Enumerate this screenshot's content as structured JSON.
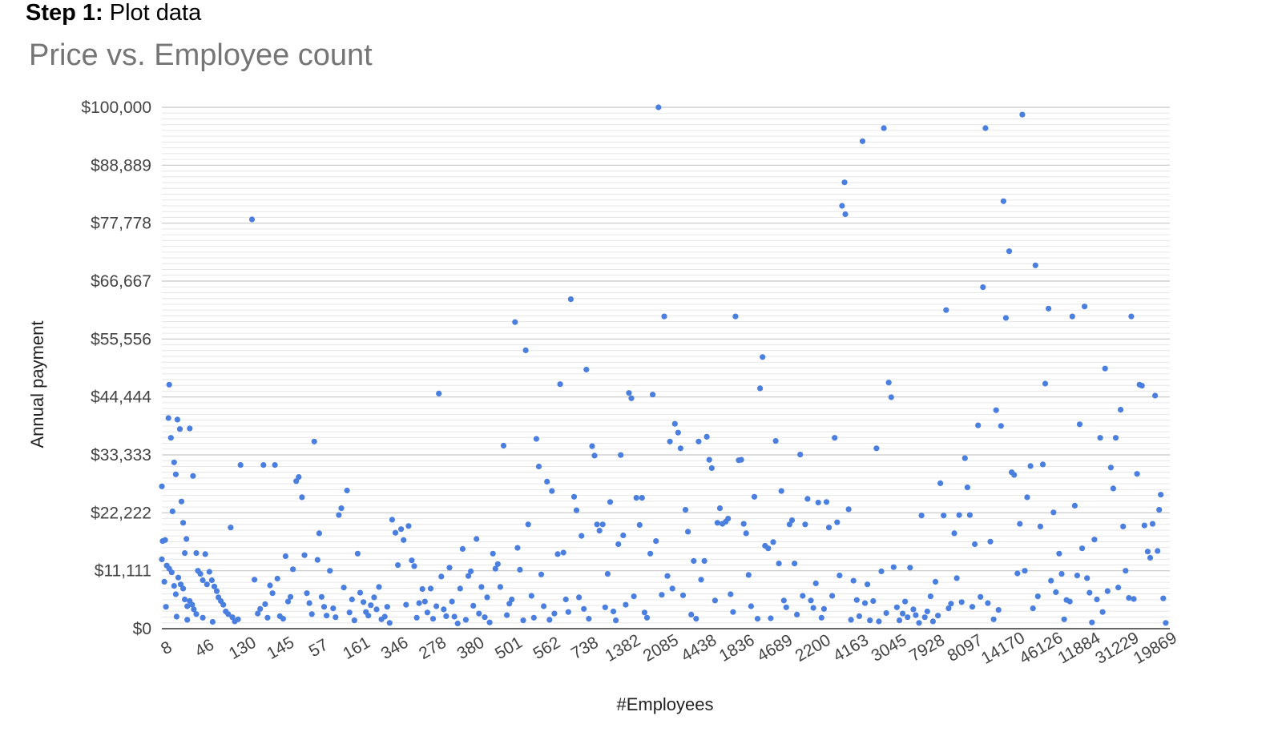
{
  "heading": {
    "step_label": "Step 1:",
    "step_text": "Plot data"
  },
  "chart_data": {
    "type": "scatter",
    "title": "Price vs. Employee count",
    "xlabel": "#Employees",
    "ylabel": "Annual payment",
    "ylim": [
      0,
      100000
    ],
    "y_ticks": [
      "$0",
      "$11,111",
      "$22,222",
      "$33,333",
      "$44,444",
      "$55,556",
      "$66,667",
      "$77,778",
      "$88,889",
      "$100,000"
    ],
    "x_tick_labels": [
      "8",
      "46",
      "130",
      "145",
      "57",
      "161",
      "346",
      "278",
      "380",
      "501",
      "562",
      "738",
      "1382",
      "2085",
      "4438",
      "1836",
      "4689",
      "2200",
      "4163",
      "3045",
      "7928",
      "8097",
      "14170",
      "46126",
      "11884",
      "31229",
      "19869"
    ],
    "grid": true,
    "legend": "none",
    "point_color": "#4a7fe0",
    "x_note": "categorical axis: x is the ordinal position of each company in the plotted sequence (about 0-1260)",
    "points": [
      [
        0,
        27300
      ],
      [
        1,
        16800
      ],
      [
        4,
        17000
      ],
      [
        8,
        40400
      ],
      [
        9,
        46800
      ],
      [
        11,
        36600
      ],
      [
        13,
        22500
      ],
      [
        15,
        31900
      ],
      [
        17,
        29600
      ],
      [
        19,
        40100
      ],
      [
        22,
        38300
      ],
      [
        24,
        24400
      ],
      [
        26,
        20300
      ],
      [
        28,
        14500
      ],
      [
        30,
        17200
      ],
      [
        34,
        38400
      ],
      [
        38,
        29300
      ],
      [
        42,
        14500
      ],
      [
        0,
        13300
      ],
      [
        3,
        9000
      ],
      [
        6,
        12100
      ],
      [
        9,
        11500
      ],
      [
        12,
        10800
      ],
      [
        15,
        8200
      ],
      [
        17,
        6600
      ],
      [
        20,
        9800
      ],
      [
        23,
        8500
      ],
      [
        26,
        7700
      ],
      [
        28,
        5600
      ],
      [
        31,
        4300
      ],
      [
        34,
        5300
      ],
      [
        37,
        4600
      ],
      [
        39,
        3700
      ],
      [
        42,
        2800
      ],
      [
        5,
        4200
      ],
      [
        18,
        2300
      ],
      [
        31,
        1700
      ],
      [
        44,
        11100
      ],
      [
        47,
        10500
      ],
      [
        50,
        9300
      ],
      [
        53,
        14300
      ],
      [
        55,
        8500
      ],
      [
        58,
        10900
      ],
      [
        61,
        9300
      ],
      [
        64,
        8100
      ],
      [
        67,
        7200
      ],
      [
        69,
        6000
      ],
      [
        72,
        5300
      ],
      [
        75,
        4600
      ],
      [
        78,
        3300
      ],
      [
        81,
        2800
      ],
      [
        50,
        2100
      ],
      [
        62,
        1300
      ],
      [
        86,
        2200
      ],
      [
        89,
        1400
      ],
      [
        93,
        1800
      ],
      [
        84,
        19400
      ],
      [
        96,
        31400
      ],
      [
        110,
        78500
      ],
      [
        113,
        9400
      ],
      [
        117,
        2900
      ],
      [
        120,
        3800
      ],
      [
        124,
        31400
      ],
      [
        126,
        4700
      ],
      [
        129,
        2100
      ],
      [
        132,
        8300
      ],
      [
        135,
        6800
      ],
      [
        138,
        31400
      ],
      [
        141,
        9600
      ],
      [
        144,
        2400
      ],
      [
        148,
        1900
      ],
      [
        151,
        13900
      ],
      [
        154,
        5200
      ],
      [
        157,
        6100
      ],
      [
        160,
        11400
      ],
      [
        164,
        28300
      ],
      [
        167,
        29100
      ],
      [
        171,
        25200
      ],
      [
        174,
        14100
      ],
      [
        177,
        6800
      ],
      [
        180,
        4900
      ],
      [
        183,
        2800
      ],
      [
        186,
        35900
      ],
      [
        190,
        13200
      ],
      [
        192,
        18300
      ],
      [
        195,
        6100
      ],
      [
        198,
        4200
      ],
      [
        201,
        2500
      ],
      [
        205,
        11100
      ],
      [
        209,
        3900
      ],
      [
        212,
        2200
      ],
      [
        216,
        21800
      ],
      [
        219,
        23100
      ],
      [
        222,
        7900
      ],
      [
        226,
        26500
      ],
      [
        229,
        3100
      ],
      [
        232,
        5600
      ],
      [
        235,
        1600
      ],
      [
        239,
        14400
      ],
      [
        242,
        6900
      ],
      [
        246,
        5100
      ],
      [
        249,
        3200
      ],
      [
        252,
        2500
      ],
      [
        255,
        4500
      ],
      [
        259,
        6000
      ],
      [
        262,
        3700
      ],
      [
        265,
        8000
      ],
      [
        268,
        1800
      ],
      [
        272,
        2300
      ],
      [
        275,
        4200
      ],
      [
        278,
        1100
      ],
      [
        281,
        20900
      ],
      [
        285,
        18400
      ],
      [
        288,
        12200
      ],
      [
        292,
        19100
      ],
      [
        295,
        17000
      ],
      [
        298,
        4600
      ],
      [
        301,
        19700
      ],
      [
        305,
        13100
      ],
      [
        308,
        12000
      ],
      [
        311,
        2100
      ],
      [
        314,
        4900
      ],
      [
        318,
        7600
      ],
      [
        321,
        5200
      ],
      [
        324,
        3100
      ],
      [
        328,
        7700
      ],
      [
        331,
        1900
      ],
      [
        335,
        4300
      ],
      [
        338,
        45100
      ],
      [
        341,
        10000
      ],
      [
        344,
        3700
      ],
      [
        347,
        2400
      ],
      [
        351,
        11700
      ],
      [
        354,
        5200
      ],
      [
        357,
        2300
      ],
      [
        361,
        1000
      ],
      [
        364,
        7700
      ],
      [
        367,
        15300
      ],
      [
        371,
        1700
      ],
      [
        374,
        10100
      ],
      [
        377,
        11000
      ],
      [
        380,
        4400
      ],
      [
        384,
        17200
      ],
      [
        387,
        2900
      ],
      [
        390,
        8000
      ],
      [
        394,
        2200
      ],
      [
        397,
        6000
      ],
      [
        400,
        1200
      ],
      [
        404,
        14400
      ],
      [
        407,
        11500
      ],
      [
        410,
        12400
      ],
      [
        413,
        8000
      ],
      [
        417,
        35100
      ],
      [
        421,
        2600
      ],
      [
        424,
        4800
      ],
      [
        427,
        5600
      ],
      [
        431,
        58800
      ],
      [
        434,
        15500
      ],
      [
        437,
        11300
      ],
      [
        441,
        1600
      ],
      [
        444,
        53400
      ],
      [
        447,
        20000
      ],
      [
        451,
        6300
      ],
      [
        454,
        2100
      ],
      [
        457,
        36400
      ],
      [
        460,
        31100
      ],
      [
        463,
        10400
      ],
      [
        466,
        4300
      ],
      [
        470,
        28200
      ],
      [
        473,
        1700
      ],
      [
        476,
        26400
      ],
      [
        479,
        2900
      ],
      [
        483,
        14300
      ],
      [
        486,
        46900
      ],
      [
        490,
        14600
      ],
      [
        493,
        5600
      ],
      [
        496,
        3200
      ],
      [
        499,
        63200
      ],
      [
        503,
        25300
      ],
      [
        506,
        22700
      ],
      [
        509,
        6000
      ],
      [
        512,
        17800
      ],
      [
        515,
        3800
      ],
      [
        518,
        49700
      ],
      [
        521,
        1900
      ],
      [
        525,
        35000
      ],
      [
        528,
        33200
      ],
      [
        531,
        20000
      ],
      [
        534,
        18800
      ],
      [
        538,
        20000
      ],
      [
        541,
        4100
      ],
      [
        544,
        10500
      ],
      [
        547,
        24300
      ],
      [
        551,
        3300
      ],
      [
        554,
        1600
      ],
      [
        557,
        16200
      ],
      [
        560,
        33300
      ],
      [
        563,
        17900
      ],
      [
        566,
        4600
      ],
      [
        570,
        45200
      ],
      [
        573,
        44200
      ],
      [
        576,
        6200
      ],
      [
        579,
        25100
      ],
      [
        583,
        19900
      ],
      [
        586,
        25100
      ],
      [
        589,
        3100
      ],
      [
        592,
        2100
      ],
      [
        596,
        14400
      ],
      [
        599,
        44900
      ],
      [
        603,
        16800
      ],
      [
        606,
        100000
      ],
      [
        610,
        6500
      ],
      [
        613,
        59900
      ],
      [
        617,
        10100
      ],
      [
        620,
        35900
      ],
      [
        623,
        7700
      ],
      [
        626,
        39300
      ],
      [
        630,
        37600
      ],
      [
        633,
        34600
      ],
      [
        636,
        6400
      ],
      [
        639,
        22800
      ],
      [
        642,
        18600
      ],
      [
        646,
        2700
      ],
      [
        649,
        13000
      ],
      [
        652,
        1900
      ],
      [
        655,
        35900
      ],
      [
        658,
        9400
      ],
      [
        662,
        13000
      ],
      [
        665,
        36800
      ],
      [
        668,
        32400
      ],
      [
        671,
        30800
      ],
      [
        675,
        5400
      ],
      [
        678,
        20300
      ],
      [
        681,
        23100
      ],
      [
        684,
        20100
      ],
      [
        688,
        20500
      ],
      [
        691,
        21100
      ],
      [
        694,
        6600
      ],
      [
        697,
        3200
      ],
      [
        700,
        59900
      ],
      [
        704,
        32300
      ],
      [
        707,
        32400
      ],
      [
        710,
        20100
      ],
      [
        713,
        18300
      ],
      [
        716,
        10300
      ],
      [
        719,
        4300
      ],
      [
        723,
        25300
      ],
      [
        727,
        1900
      ],
      [
        730,
        46100
      ],
      [
        733,
        52100
      ],
      [
        736,
        15900
      ],
      [
        740,
        15400
      ],
      [
        743,
        2000
      ],
      [
        746,
        16600
      ],
      [
        749,
        36000
      ],
      [
        753,
        12500
      ],
      [
        756,
        26400
      ],
      [
        759,
        5400
      ],
      [
        762,
        4100
      ],
      [
        766,
        20000
      ],
      [
        769,
        20800
      ],
      [
        772,
        12500
      ],
      [
        775,
        2700
      ],
      [
        779,
        33400
      ],
      [
        782,
        6300
      ],
      [
        785,
        20000
      ],
      [
        788,
        24900
      ],
      [
        792,
        5400
      ],
      [
        795,
        4000
      ],
      [
        798,
        8700
      ],
      [
        801,
        24200
      ],
      [
        805,
        2100
      ],
      [
        808,
        3800
      ],
      [
        811,
        24300
      ],
      [
        814,
        19400
      ],
      [
        818,
        6300
      ],
      [
        821,
        36600
      ],
      [
        824,
        20400
      ],
      [
        827,
        10200
      ],
      [
        830,
        81100
      ],
      [
        833,
        85600
      ],
      [
        834,
        79500
      ],
      [
        838,
        22900
      ],
      [
        841,
        1700
      ],
      [
        844,
        9200
      ],
      [
        848,
        5500
      ],
      [
        851,
        2400
      ],
      [
        855,
        93500
      ],
      [
        858,
        4900
      ],
      [
        861,
        8500
      ],
      [
        864,
        1600
      ],
      [
        868,
        5300
      ],
      [
        872,
        34600
      ],
      [
        875,
        1400
      ],
      [
        878,
        11000
      ],
      [
        881,
        96000
      ],
      [
        884,
        3000
      ],
      [
        887,
        47200
      ],
      [
        890,
        44400
      ],
      [
        893,
        11800
      ],
      [
        897,
        4100
      ],
      [
        900,
        1600
      ],
      [
        904,
        2900
      ],
      [
        907,
        5200
      ],
      [
        910,
        2200
      ],
      [
        913,
        11700
      ],
      [
        917,
        3700
      ],
      [
        920,
        2600
      ],
      [
        924,
        1100
      ],
      [
        927,
        21700
      ],
      [
        931,
        2200
      ],
      [
        934,
        3300
      ],
      [
        938,
        6200
      ],
      [
        941,
        1400
      ],
      [
        944,
        9000
      ],
      [
        947,
        2500
      ],
      [
        950,
        27900
      ],
      [
        954,
        21700
      ],
      [
        957,
        61100
      ],
      [
        960,
        3900
      ],
      [
        963,
        4800
      ],
      [
        967,
        18300
      ],
      [
        970,
        9700
      ],
      [
        973,
        21800
      ],
      [
        976,
        5100
      ],
      [
        980,
        32700
      ],
      [
        983,
        27100
      ],
      [
        986,
        21800
      ],
      [
        989,
        4200
      ],
      [
        992,
        16200
      ],
      [
        996,
        39000
      ],
      [
        999,
        6100
      ],
      [
        1002,
        65500
      ],
      [
        1005,
        96000
      ],
      [
        1008,
        4900
      ],
      [
        1011,
        16700
      ],
      [
        1015,
        1800
      ],
      [
        1018,
        41900
      ],
      [
        1021,
        3600
      ],
      [
        1024,
        38900
      ],
      [
        1027,
        82000
      ],
      [
        1030,
        59600
      ],
      [
        1034,
        72400
      ],
      [
        1037,
        30000
      ],
      [
        1040,
        29500
      ],
      [
        1044,
        10600
      ],
      [
        1047,
        20100
      ],
      [
        1050,
        98600
      ],
      [
        1053,
        11100
      ],
      [
        1056,
        25200
      ],
      [
        1060,
        31200
      ],
      [
        1063,
        3900
      ],
      [
        1066,
        69700
      ],
      [
        1069,
        6200
      ],
      [
        1072,
        19600
      ],
      [
        1075,
        31500
      ],
      [
        1078,
        47000
      ],
      [
        1082,
        61400
      ],
      [
        1085,
        9200
      ],
      [
        1088,
        22300
      ],
      [
        1091,
        7000
      ],
      [
        1095,
        14400
      ],
      [
        1098,
        10500
      ],
      [
        1101,
        1800
      ],
      [
        1104,
        5500
      ],
      [
        1108,
        5200
      ],
      [
        1111,
        59900
      ],
      [
        1114,
        23600
      ],
      [
        1117,
        10200
      ],
      [
        1120,
        39200
      ],
      [
        1123,
        15400
      ],
      [
        1126,
        61800
      ],
      [
        1129,
        9700
      ],
      [
        1132,
        6900
      ],
      [
        1135,
        1200
      ],
      [
        1138,
        17100
      ],
      [
        1141,
        5600
      ],
      [
        1145,
        36600
      ],
      [
        1148,
        3200
      ],
      [
        1151,
        49900
      ],
      [
        1154,
        7200
      ],
      [
        1158,
        30900
      ],
      [
        1161,
        26900
      ],
      [
        1164,
        36600
      ],
      [
        1167,
        7900
      ],
      [
        1170,
        42000
      ],
      [
        1173,
        19600
      ],
      [
        1176,
        11100
      ],
      [
        1180,
        5900
      ],
      [
        1183,
        59900
      ],
      [
        1186,
        5700
      ],
      [
        1190,
        29700
      ],
      [
        1193,
        46800
      ],
      [
        1196,
        46600
      ],
      [
        1199,
        19800
      ],
      [
        1203,
        14800
      ],
      [
        1206,
        13600
      ],
      [
        1209,
        20100
      ],
      [
        1212,
        44700
      ],
      [
        1215,
        14900
      ],
      [
        1217,
        22800
      ],
      [
        1219,
        25700
      ],
      [
        1222,
        5800
      ],
      [
        1225,
        1100
      ]
    ]
  }
}
